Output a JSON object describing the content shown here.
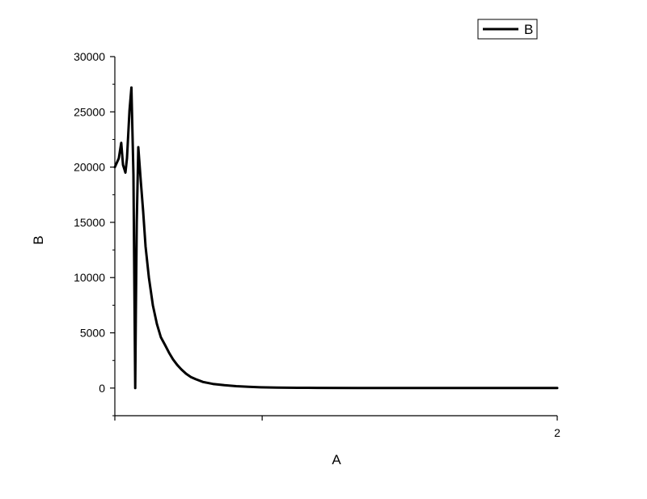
{
  "chart_data": {
    "type": "line",
    "title": "",
    "xlabel": "A",
    "ylabel": "B",
    "xlim": [
      0,
      2
    ],
    "ylim": [
      -2500,
      30000
    ],
    "x_ticks": [
      0,
      0.666,
      2
    ],
    "x_tick_labels": [
      "",
      "",
      "2"
    ],
    "y_ticks": [
      0,
      5000,
      10000,
      15000,
      20000,
      25000,
      30000
    ],
    "y_tick_labels": [
      "0",
      "5000",
      "10000",
      "15000",
      "20000",
      "25000",
      "30000"
    ],
    "grid": false,
    "legend": {
      "position": "top-right",
      "entries": [
        "B"
      ]
    },
    "series": [
      {
        "name": "B",
        "color": "#000000",
        "x": [
          0,
          0.018,
          0.029,
          0.037,
          0.048,
          0.055,
          0.066,
          0.075,
          0.084,
          0.092,
          0.095,
          0.099,
          0.106,
          0.117,
          0.128,
          0.139,
          0.154,
          0.172,
          0.19,
          0.208,
          0.227,
          0.245,
          0.263,
          0.282,
          0.3,
          0.322,
          0.344,
          0.366,
          0.399,
          0.443,
          0.495,
          0.549,
          0.604,
          0.659,
          0.733,
          0.824,
          0.916,
          1.099,
          1.282,
          1.465,
          1.648,
          1.831,
          2.0
        ],
        "y": [
          20000,
          20800,
          22200,
          20200,
          19500,
          20800,
          25100,
          27200,
          19300,
          0,
          7000,
          15000,
          21800,
          18800,
          16000,
          12800,
          10000,
          7500,
          5800,
          4600,
          3900,
          3200,
          2600,
          2100,
          1700,
          1300,
          1000,
          800,
          550,
          380,
          260,
          170,
          110,
          70,
          40,
          25,
          15,
          8,
          5,
          3,
          2,
          1,
          0
        ]
      }
    ]
  }
}
